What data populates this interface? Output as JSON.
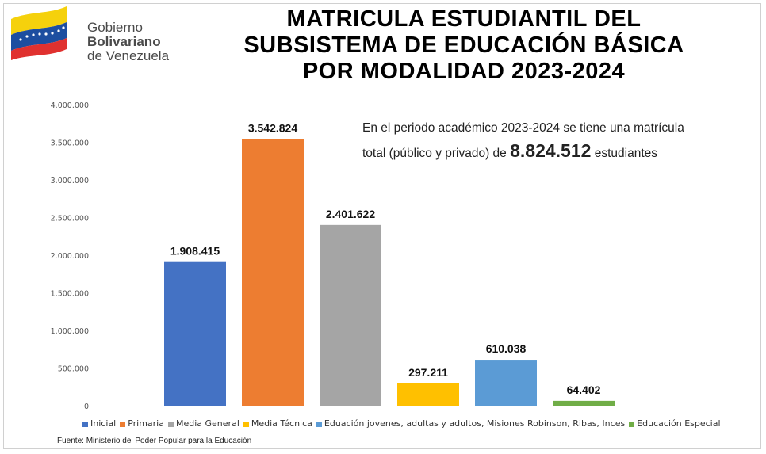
{
  "header": {
    "logo": {
      "line1": "Gobierno",
      "line2": "Bolivariano",
      "line3": "de Venezuela"
    },
    "title_lines": [
      "MATRICULA ESTUDIANTIL DEL",
      "SUBSISTEMA DE EDUCACIÓN BÁSICA",
      "POR MODALIDAD 2023-2024"
    ]
  },
  "note": {
    "line1": "En el periodo académico 2023-2024 se tiene una matrícula",
    "line2_prefix": "total (público y privado) de",
    "total": "8.824.512",
    "line2_suffix": "estudiantes"
  },
  "chart_data": {
    "type": "bar",
    "title": "MATRICULA ESTUDIANTIL DEL SUBSISTEMA DE EDUCACIÓN BÁSICA POR MODALIDAD 2023-2024",
    "categories": [
      "Inicial",
      "Primaria",
      "Media General",
      "Media Técnica",
      "Eduación jovenes, adultas y adultos, Misiones Robinson, Ribas, Inces",
      "Educación Especial"
    ],
    "values": [
      1908415,
      3542824,
      2401622,
      297211,
      610038,
      64402
    ],
    "value_labels": [
      "1.908.415",
      "3.542.824",
      "2.401.622",
      "297.211",
      "610.038",
      "64.402"
    ],
    "colors": [
      "#4472c4",
      "#ed7d31",
      "#a5a5a5",
      "#ffc000",
      "#5b9bd5",
      "#70ad47"
    ],
    "ylim": [
      0,
      4000000
    ],
    "yticks": [
      0,
      500000,
      1000000,
      1500000,
      2000000,
      2500000,
      3000000,
      3500000,
      4000000
    ],
    "ytick_labels": [
      "0",
      "500.000",
      "1.000.000",
      "1.500.000",
      "2.000.000",
      "2.500.000",
      "3.000.000",
      "3.500.000",
      "4.000.000"
    ],
    "grid": false,
    "legend_position": "bottom"
  },
  "source": "Fuente: Ministerio del Poder Popular para la Educación"
}
